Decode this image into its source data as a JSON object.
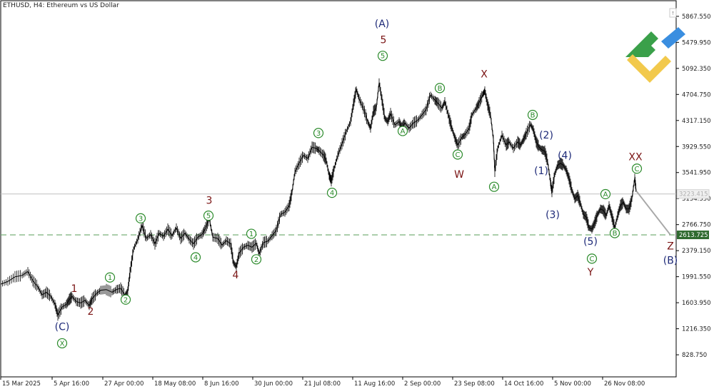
{
  "header": {
    "symbol_title": "ETHUSD, H4:  Ethereum vs US Dollar"
  },
  "colors": {
    "price_line": "#000000",
    "wave_dark": "#7a1414",
    "wave_navy": "#1e2a78",
    "wave_green": "#2a8a2a",
    "support_line": "#6aa86a",
    "current_line": "#c0c0c0",
    "projection": "#a8a8a8",
    "logo_green": "#3aa04a",
    "logo_yellow": "#f2c94c",
    "logo_blue": "#3a8ee0"
  },
  "chart_data": {
    "type": "line",
    "ylim": [
      500,
      6100
    ],
    "xlim": [
      0,
      946
    ],
    "y_ticks": [
      "5867.550",
      "5479.950",
      "5092.350",
      "4704.750",
      "4317.150",
      "3929.550",
      "3541.950",
      "3154.350",
      "2766.750",
      "2379.150",
      "1991.550",
      "1603.950",
      "1216.350",
      "828.750"
    ],
    "x_ticks": [
      {
        "label": "15 Mar 2025",
        "x": 0
      },
      {
        "label": "5 Apr 16:00",
        "x": 72
      },
      {
        "label": "27 Apr 00:00",
        "x": 143
      },
      {
        "label": "18 May 08:00",
        "x": 213
      },
      {
        "label": "8 Jun 16:00",
        "x": 283
      },
      {
        "label": "30 Jun 00:00",
        "x": 353
      },
      {
        "label": "21 Jul 08:00",
        "x": 423
      },
      {
        "label": "11 Aug 16:00",
        "x": 493
      },
      {
        "label": "2 Sep 00:00",
        "x": 563
      },
      {
        "label": "23 Sep 08:00",
        "x": 633
      },
      {
        "label": "14 Oct 16:00",
        "x": 703
      },
      {
        "label": "5 Nov 00:00",
        "x": 773
      },
      {
        "label": "26 Nov 08:00",
        "x": 843
      }
    ],
    "current_price": "3223.415",
    "current_value": 3223,
    "support_price": "2613.725",
    "support_value": 2614,
    "projection": {
      "from": [
        890,
        3270
      ],
      "to": [
        938,
        2614
      ]
    },
    "series": [
      {
        "values": [
          [
            0,
            1880
          ],
          [
            10,
            1920
          ],
          [
            20,
            1990
          ],
          [
            30,
            2010
          ],
          [
            38,
            2070
          ],
          [
            45,
            1930
          ],
          [
            52,
            1840
          ],
          [
            58,
            1720
          ],
          [
            64,
            1760
          ],
          [
            70,
            1700
          ],
          [
            76,
            1580
          ],
          [
            80,
            1420
          ],
          [
            86,
            1540
          ],
          [
            92,
            1580
          ],
          [
            96,
            1650
          ],
          [
            100,
            1700
          ],
          [
            106,
            1620
          ],
          [
            112,
            1600
          ],
          [
            118,
            1640
          ],
          [
            124,
            1560
          ],
          [
            128,
            1660
          ],
          [
            134,
            1740
          ],
          [
            140,
            1790
          ],
          [
            148,
            1800
          ],
          [
            156,
            1760
          ],
          [
            162,
            1800
          ],
          [
            168,
            1820
          ],
          [
            174,
            1710
          ],
          [
            178,
            1780
          ],
          [
            181,
            2050
          ],
          [
            186,
            2400
          ],
          [
            192,
            2550
          ],
          [
            198,
            2760
          ],
          [
            204,
            2560
          ],
          [
            210,
            2620
          ],
          [
            216,
            2480
          ],
          [
            222,
            2640
          ],
          [
            228,
            2590
          ],
          [
            234,
            2700
          ],
          [
            240,
            2600
          ],
          [
            246,
            2720
          ],
          [
            252,
            2560
          ],
          [
            258,
            2640
          ],
          [
            264,
            2550
          ],
          [
            270,
            2480
          ],
          [
            276,
            2580
          ],
          [
            282,
            2620
          ],
          [
            287,
            2720
          ],
          [
            292,
            2860
          ],
          [
            297,
            2580
          ],
          [
            304,
            2560
          ],
          [
            310,
            2460
          ],
          [
            316,
            2530
          ],
          [
            322,
            2480
          ],
          [
            326,
            2200
          ],
          [
            330,
            2140
          ],
          [
            334,
            2340
          ],
          [
            340,
            2430
          ],
          [
            346,
            2460
          ],
          [
            352,
            2430
          ],
          [
            358,
            2490
          ],
          [
            362,
            2330
          ],
          [
            368,
            2500
          ],
          [
            374,
            2520
          ],
          [
            380,
            2600
          ],
          [
            386,
            2680
          ],
          [
            392,
            2920
          ],
          [
            398,
            2950
          ],
          [
            404,
            3050
          ],
          [
            408,
            3250
          ],
          [
            412,
            3550
          ],
          [
            418,
            3680
          ],
          [
            424,
            3800
          ],
          [
            430,
            3750
          ],
          [
            436,
            3920
          ],
          [
            442,
            3900
          ],
          [
            446,
            3870
          ],
          [
            452,
            3800
          ],
          [
            456,
            3720
          ],
          [
            460,
            3500
          ],
          [
            463,
            3420
          ],
          [
            467,
            3600
          ],
          [
            472,
            3800
          ],
          [
            478,
            3970
          ],
          [
            484,
            4150
          ],
          [
            490,
            4300
          ],
          [
            494,
            4560
          ],
          [
            498,
            4780
          ],
          [
            502,
            4640
          ],
          [
            508,
            4500
          ],
          [
            514,
            4300
          ],
          [
            518,
            4200
          ],
          [
            522,
            4450
          ],
          [
            526,
            4500
          ],
          [
            530,
            4880
          ],
          [
            534,
            4620
          ],
          [
            538,
            4350
          ],
          [
            542,
            4300
          ],
          [
            546,
            4420
          ],
          [
            552,
            4250
          ],
          [
            558,
            4300
          ],
          [
            562,
            4200
          ],
          [
            566,
            4280
          ],
          [
            572,
            4200
          ],
          [
            578,
            4280
          ],
          [
            584,
            4320
          ],
          [
            590,
            4400
          ],
          [
            596,
            4480
          ],
          [
            602,
            4700
          ],
          [
            608,
            4620
          ],
          [
            612,
            4580
          ],
          [
            618,
            4500
          ],
          [
            622,
            4600
          ],
          [
            628,
            4350
          ],
          [
            632,
            4200
          ],
          [
            636,
            4060
          ],
          [
            640,
            3950
          ],
          [
            646,
            4070
          ],
          [
            650,
            4100
          ],
          [
            656,
            4200
          ],
          [
            660,
            4400
          ],
          [
            666,
            4500
          ],
          [
            670,
            4580
          ],
          [
            675,
            4700
          ],
          [
            678,
            4760
          ],
          [
            682,
            4550
          ],
          [
            686,
            4400
          ],
          [
            690,
            4040
          ],
          [
            692,
            3560
          ],
          [
            696,
            3900
          ],
          [
            702,
            4100
          ],
          [
            708,
            3950
          ],
          [
            712,
            4000
          ],
          [
            718,
            3900
          ],
          [
            724,
            4000
          ],
          [
            728,
            3950
          ],
          [
            732,
            4030
          ],
          [
            736,
            4120
          ],
          [
            742,
            4260
          ],
          [
            746,
            4180
          ],
          [
            750,
            4000
          ],
          [
            754,
            3920
          ],
          [
            758,
            3880
          ],
          [
            762,
            3860
          ],
          [
            766,
            3700
          ],
          [
            770,
            3400
          ],
          [
            772,
            3260
          ],
          [
            776,
            3520
          ],
          [
            780,
            3650
          ],
          [
            784,
            3680
          ],
          [
            788,
            3650
          ],
          [
            792,
            3580
          ],
          [
            796,
            3450
          ],
          [
            800,
            3280
          ],
          [
            804,
            3150
          ],
          [
            808,
            3200
          ],
          [
            812,
            3080
          ],
          [
            816,
            2920
          ],
          [
            820,
            2880
          ],
          [
            824,
            2720
          ],
          [
            828,
            2700
          ],
          [
            832,
            2800
          ],
          [
            836,
            2920
          ],
          [
            840,
            3000
          ],
          [
            844,
            2980
          ],
          [
            848,
            2900
          ],
          [
            852,
            3050
          ],
          [
            856,
            2890
          ],
          [
            860,
            2720
          ],
          [
            864,
            2900
          ],
          [
            868,
            3050
          ],
          [
            872,
            3100
          ],
          [
            876,
            3000
          ],
          [
            880,
            3000
          ],
          [
            884,
            3150
          ],
          [
            888,
            3460
          ],
          [
            890,
            3270
          ]
        ]
      }
    ],
    "wave_labels": [
      {
        "text": "(A)",
        "style": "navy",
        "x": 534,
        "y": 5760
      },
      {
        "text": "5",
        "style": "dark",
        "x": 536,
        "y": 5520
      },
      {
        "text": "5",
        "style": "green",
        "x": 535,
        "y": 5280
      },
      {
        "text": "B",
        "style": "green",
        "x": 615,
        "y": 4800
      },
      {
        "text": "X",
        "style": "dark",
        "x": 677,
        "y": 5010
      },
      {
        "text": "B",
        "style": "green",
        "x": 745,
        "y": 4400
      },
      {
        "text": "(2)",
        "style": "navy",
        "x": 764,
        "y": 4100
      },
      {
        "text": "(4)",
        "style": "navy",
        "x": 790,
        "y": 3800
      },
      {
        "text": "XX",
        "style": "dark",
        "x": 889,
        "y": 3780
      },
      {
        "text": "C",
        "style": "green",
        "x": 891,
        "y": 3600
      },
      {
        "text": "3",
        "style": "green",
        "x": 445,
        "y": 4130
      },
      {
        "text": "A",
        "style": "green",
        "x": 563,
        "y": 4160
      },
      {
        "text": "C",
        "style": "green",
        "x": 640,
        "y": 3810
      },
      {
        "text": "W",
        "style": "dark",
        "x": 642,
        "y": 3520
      },
      {
        "text": "(1)",
        "style": "navy",
        "x": 757,
        "y": 3570
      },
      {
        "text": "A",
        "style": "green",
        "x": 691,
        "y": 3330
      },
      {
        "text": "4",
        "style": "green",
        "x": 464,
        "y": 3240
      },
      {
        "text": "A",
        "style": "green",
        "x": 847,
        "y": 3220
      },
      {
        "text": "3",
        "style": "dark",
        "x": 292,
        "y": 3130
      },
      {
        "text": "3",
        "style": "green",
        "x": 196,
        "y": 2860
      },
      {
        "text": "5",
        "style": "green",
        "x": 291,
        "y": 2900
      },
      {
        "text": "(3)",
        "style": "navy",
        "x": 773,
        "y": 2920
      },
      {
        "text": "1",
        "style": "green",
        "x": 351,
        "y": 2630
      },
      {
        "text": "B",
        "style": "green",
        "x": 860,
        "y": 2640
      },
      {
        "text": "(5)",
        "style": "navy",
        "x": 826,
        "y": 2520
      },
      {
        "text": "Z",
        "style": "dark",
        "x": 938,
        "y": 2450
      },
      {
        "text": "4",
        "style": "green",
        "x": 273,
        "y": 2280
      },
      {
        "text": "2",
        "style": "green",
        "x": 358,
        "y": 2250
      },
      {
        "text": "C",
        "style": "green",
        "x": 828,
        "y": 2260
      },
      {
        "text": "(B)",
        "style": "navy",
        "x": 938,
        "y": 2240
      },
      {
        "text": "4",
        "style": "dark",
        "x": 329,
        "y": 2020
      },
      {
        "text": "Y",
        "style": "dark",
        "x": 826,
        "y": 2060
      },
      {
        "text": "1",
        "style": "green",
        "x": 153,
        "y": 1980
      },
      {
        "text": "1",
        "style": "dark",
        "x": 103,
        "y": 1820
      },
      {
        "text": "2",
        "style": "green",
        "x": 175,
        "y": 1650
      },
      {
        "text": "2",
        "style": "dark",
        "x": 126,
        "y": 1480
      },
      {
        "text": "(C)",
        "style": "navy",
        "x": 86,
        "y": 1250
      },
      {
        "text": "X",
        "style": "green",
        "x": 86,
        "y": 1000
      }
    ]
  }
}
